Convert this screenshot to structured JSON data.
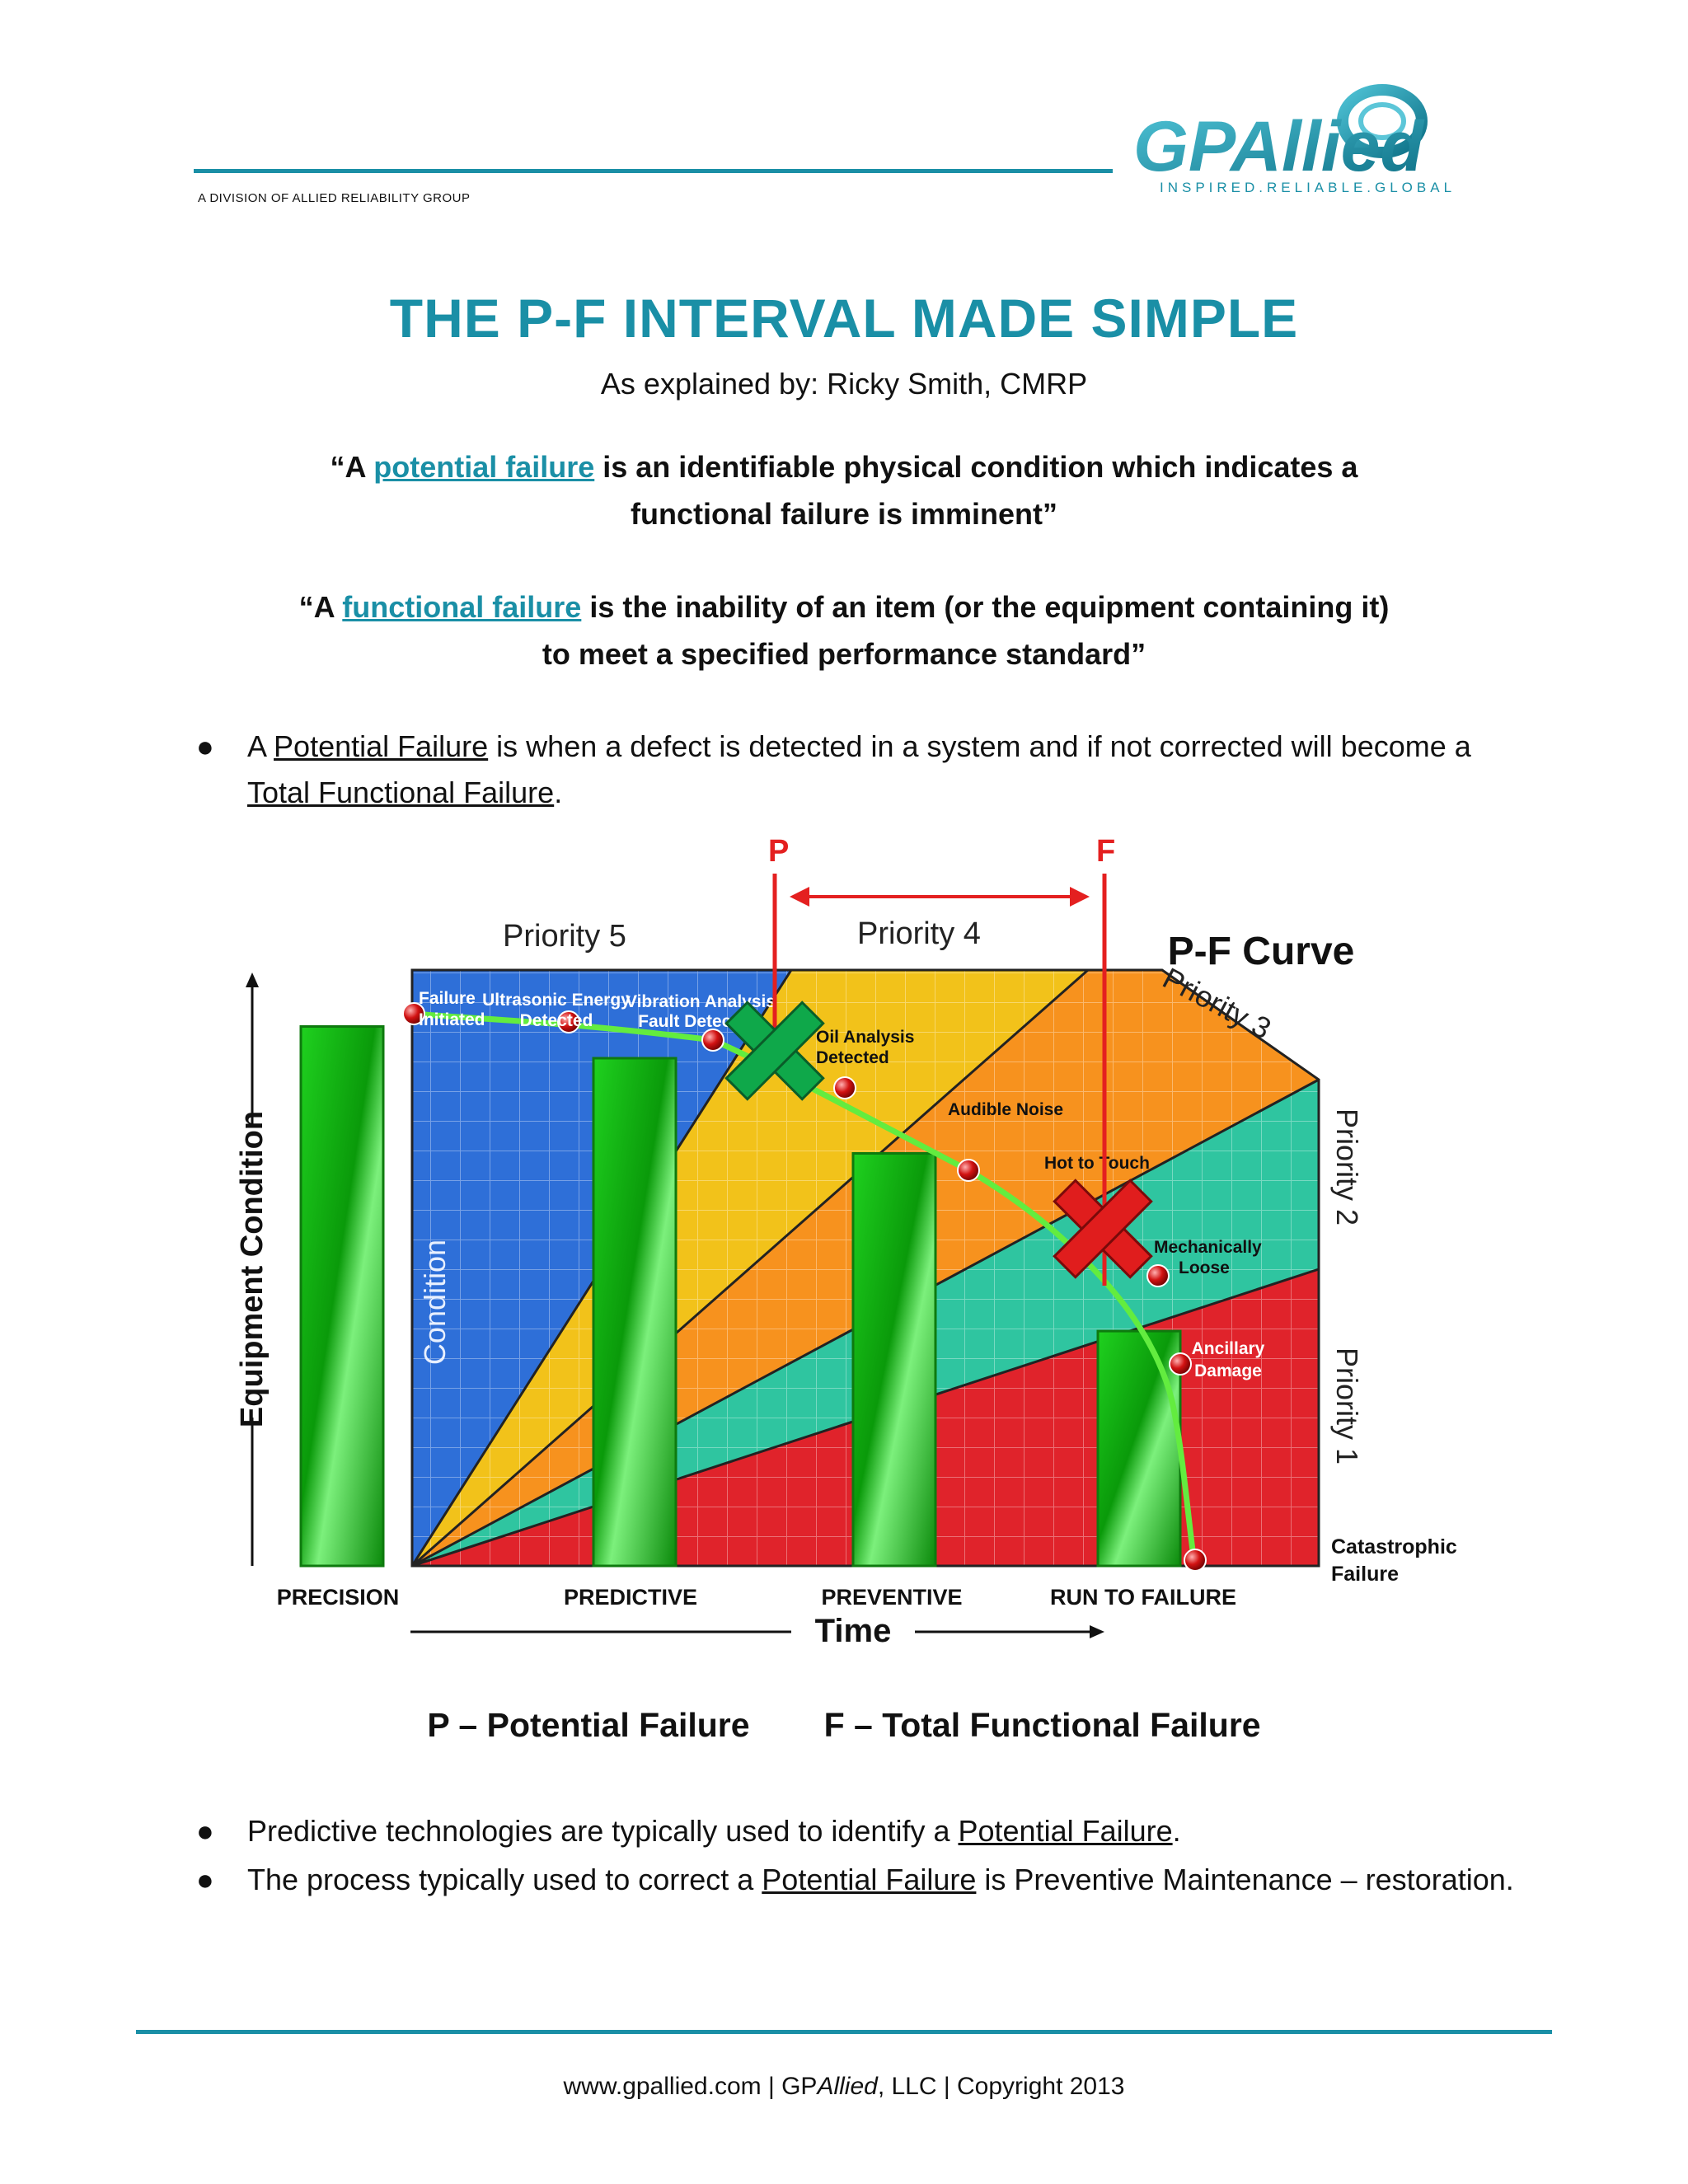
{
  "header": {
    "division_lead": "A DIVISION OF ",
    "division_name": "ALLIED RELIABILITY GROUP",
    "logo_text": "GPAllied",
    "logo_tagline": "INSPIRED.RELIABLE.GLOBAL",
    "brand_color": "#1a8fa6"
  },
  "title": "THE P-F INTERVAL MADE SIMPLE",
  "byline": "As explained by: Ricky Smith, CMRP",
  "quote1": {
    "open": "“A ",
    "link": "potential failure",
    "line1_rest": " is an identifiable physical condition which indicates a",
    "line2": "functional failure is imminent”"
  },
  "quote2": {
    "open": "“A ",
    "link": "functional failure",
    "line1_rest": " is the inability of an item (or the equipment containing it)",
    "line2": "to meet a specified performance standard”"
  },
  "bullets": [
    {
      "parts": [
        "A ",
        "Potential Failure",
        " is when a defect is detected in a system and if not corrected will become a ",
        "Total Functional Failure",
        "."
      ]
    },
    {
      "parts": [
        "Predictive technologies are typically used to identify a ",
        "Potential Failure",
        "."
      ]
    },
    {
      "parts": [
        "The process typically used to correct a ",
        "Potential Failure",
        " is Preventive Maintenance – restoration."
      ]
    }
  ],
  "chart": {
    "title": "P-F Curve",
    "marker_p": "P",
    "marker_f": "F",
    "y_axis_label": "Equipment Condition",
    "x_axis_label": "Time",
    "inner_axis_label": "Condition",
    "priorities": [
      "Priority 5",
      "Priority 4",
      "Priority 3",
      "Priority 2",
      "Priority 1"
    ],
    "categories": [
      "PRECISION",
      "PREDICTIVE",
      "PREVENTIVE",
      "RUN TO FAILURE"
    ],
    "bar_levels": [
      0.85,
      0.8,
      0.65,
      0.37
    ],
    "curve_points": [
      {
        "l1": "Failure",
        "l2": "Initiated"
      },
      {
        "l1": "Ultrasonic Energy",
        "l2": "Detected"
      },
      {
        "l1": "Vibration Analysis",
        "l2": "Fault Detection"
      },
      {
        "l1": "Oil Analysis",
        "l2": "Detected"
      },
      {
        "l1": "Audible Noise",
        "l2": ""
      },
      {
        "l1": "Hot to Touch",
        "l2": ""
      },
      {
        "l1": "Mechanically",
        "l2": "Loose"
      },
      {
        "l1": "Ancillary",
        "l2": "Damage"
      },
      {
        "l1": "Catastrophic",
        "l2": "Failure"
      }
    ]
  },
  "legend": {
    "p": "P – Potential Failure",
    "f": "F – Total Functional Failure"
  },
  "footer": {
    "site": "www.gpallied.com",
    "sep": " | ",
    "company_a": "GP",
    "company_b": "Allied",
    "company_c": ", LLC",
    "copyright": "Copyright 2013"
  }
}
